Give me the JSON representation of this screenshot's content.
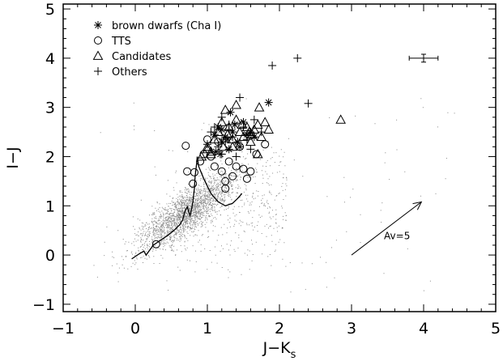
{
  "chart_data": {
    "type": "scatter",
    "xlabel": "J−K",
    "xlabel_subscript": "s",
    "ylabel": "I−J",
    "xlim": [
      -1,
      5
    ],
    "ylim": [
      -1.15,
      5.1
    ],
    "xticks": [
      -1,
      0,
      1,
      2,
      3,
      4,
      5
    ],
    "xtick_labels": [
      "−1",
      "0",
      "1",
      "2",
      "3",
      "4",
      "5"
    ],
    "yticks": [
      -1,
      0,
      1,
      2,
      3,
      4,
      5
    ],
    "ytick_labels": [
      "−1",
      "0",
      "1",
      "2",
      "3",
      "4",
      "5"
    ],
    "grid": false,
    "legend_position": "top-left",
    "legend": [
      {
        "label": "brown dwarfs (Cha I)",
        "marker": "asterisk-icon"
      },
      {
        "label": "TTS",
        "marker": "circle-icon"
      },
      {
        "label": "Candidates",
        "marker": "triangle-icon"
      },
      {
        "label": "Others",
        "marker": "plus-icon"
      }
    ],
    "series": [
      {
        "name": "brown dwarfs (Cha I)",
        "marker": "asterisk",
        "points": [
          [
            1.1,
            2.45
          ],
          [
            1.15,
            2.6
          ],
          [
            1.2,
            2.55
          ],
          [
            1.25,
            2.4
          ],
          [
            1.28,
            2.35
          ],
          [
            1.32,
            2.9
          ],
          [
            1.35,
            2.5
          ],
          [
            1.38,
            2.65
          ],
          [
            1.42,
            2.3
          ],
          [
            1.45,
            2.2
          ],
          [
            1.5,
            2.7
          ],
          [
            1.55,
            2.45
          ],
          [
            1.6,
            2.5
          ],
          [
            1.65,
            2.4
          ],
          [
            1.2,
            2.3
          ],
          [
            1.85,
            3.1
          ],
          [
            1.12,
            2.1
          ],
          [
            1.18,
            2.05
          ],
          [
            1.3,
            2.15
          ]
        ]
      },
      {
        "name": "TTS",
        "marker": "circle",
        "points": [
          [
            0.29,
            0.22
          ],
          [
            0.7,
            2.22
          ],
          [
            0.72,
            1.7
          ],
          [
            0.82,
            1.68
          ],
          [
            0.9,
            1.9
          ],
          [
            0.95,
            2.05
          ],
          [
            1.0,
            2.35
          ],
          [
            1.05,
            2.0
          ],
          [
            1.1,
            1.8
          ],
          [
            1.15,
            2.3
          ],
          [
            1.2,
            1.7
          ],
          [
            1.25,
            1.5
          ],
          [
            1.3,
            1.9
          ],
          [
            1.35,
            1.6
          ],
          [
            1.4,
            1.8
          ],
          [
            1.45,
            2.2
          ],
          [
            1.5,
            1.75
          ],
          [
            1.55,
            1.55
          ],
          [
            1.6,
            1.7
          ],
          [
            1.68,
            2.05
          ],
          [
            1.8,
            2.25
          ],
          [
            0.8,
            1.45
          ],
          [
            1.25,
            1.35
          ]
        ]
      },
      {
        "name": "Candidates",
        "marker": "triangle",
        "points": [
          [
            0.92,
            2.0
          ],
          [
            1.0,
            2.15
          ],
          [
            1.05,
            2.05
          ],
          [
            1.1,
            2.35
          ],
          [
            1.15,
            2.5
          ],
          [
            1.2,
            2.7
          ],
          [
            1.22,
            2.2
          ],
          [
            1.28,
            2.45
          ],
          [
            1.3,
            2.6
          ],
          [
            1.35,
            2.35
          ],
          [
            1.4,
            2.75
          ],
          [
            1.45,
            2.5
          ],
          [
            1.5,
            2.4
          ],
          [
            1.55,
            2.6
          ],
          [
            1.6,
            2.3
          ],
          [
            1.65,
            2.55
          ],
          [
            1.7,
            2.65
          ],
          [
            1.72,
            3.0
          ],
          [
            1.75,
            2.4
          ],
          [
            1.8,
            2.7
          ],
          [
            1.85,
            2.55
          ],
          [
            1.4,
            3.05
          ],
          [
            1.25,
            2.95
          ],
          [
            1.35,
            2.2
          ],
          [
            2.85,
            2.75
          ],
          [
            1.0,
            2.2
          ],
          [
            1.05,
            2.1
          ],
          [
            1.48,
            2.65
          ],
          [
            1.58,
            2.5
          ],
          [
            1.62,
            2.45
          ],
          [
            1.7,
            2.05
          ]
        ]
      },
      {
        "name": "Others",
        "marker": "plus",
        "points": [
          [
            1.9,
            3.85
          ],
          [
            2.25,
            4.0
          ],
          [
            2.4,
            3.08
          ],
          [
            1.45,
            3.2
          ],
          [
            1.1,
            2.6
          ],
          [
            1.2,
            2.8
          ],
          [
            1.3,
            2.55
          ],
          [
            1.5,
            2.6
          ],
          [
            1.6,
            2.15
          ],
          [
            1.35,
            2.4
          ],
          [
            1.25,
            2.3
          ],
          [
            1.15,
            2.2
          ],
          [
            1.0,
            2.25
          ],
          [
            1.05,
            2.5
          ],
          [
            1.4,
            2.0
          ],
          [
            1.55,
            2.35
          ],
          [
            1.65,
            2.75
          ],
          [
            1.75,
            2.5
          ],
          [
            1.2,
            2.05
          ],
          [
            1.3,
            2.65
          ]
        ]
      }
    ],
    "background_cloud": {
      "description_marker": "small gray dots",
      "color": "#777777",
      "center": [
        0.95,
        1.1
      ],
      "count": 9000
    },
    "model_track": {
      "color": "#000000",
      "points": [
        [
          -0.05,
          -0.08
        ],
        [
          0.05,
          0.02
        ],
        [
          0.12,
          0.08
        ],
        [
          0.15,
          0.0
        ],
        [
          0.25,
          0.2
        ],
        [
          0.35,
          0.3
        ],
        [
          0.45,
          0.4
        ],
        [
          0.55,
          0.52
        ],
        [
          0.62,
          0.62
        ],
        [
          0.66,
          0.72
        ],
        [
          0.68,
          0.85
        ],
        [
          0.7,
          0.92
        ],
        [
          0.72,
          0.98
        ],
        [
          0.74,
          0.88
        ],
        [
          0.76,
          0.8
        ],
        [
          0.78,
          0.92
        ],
        [
          0.8,
          1.1
        ],
        [
          0.82,
          1.35
        ],
        [
          0.83,
          1.6
        ],
        [
          0.85,
          1.85
        ],
        [
          0.86,
          2.0
        ],
        [
          0.88,
          1.8
        ],
        [
          0.95,
          1.55
        ],
        [
          1.05,
          1.25
        ],
        [
          1.15,
          1.08
        ],
        [
          1.25,
          1.0
        ],
        [
          1.35,
          1.05
        ],
        [
          1.42,
          1.15
        ],
        [
          1.48,
          1.25
        ]
      ]
    },
    "error_bar": {
      "x": 4.0,
      "y": 4.0,
      "xerr": 0.2,
      "yerr": 0.08
    },
    "reddening_vector": {
      "from": [
        3.0,
        0.0
      ],
      "to": [
        3.97,
        1.08
      ],
      "label": "Av=5"
    }
  }
}
